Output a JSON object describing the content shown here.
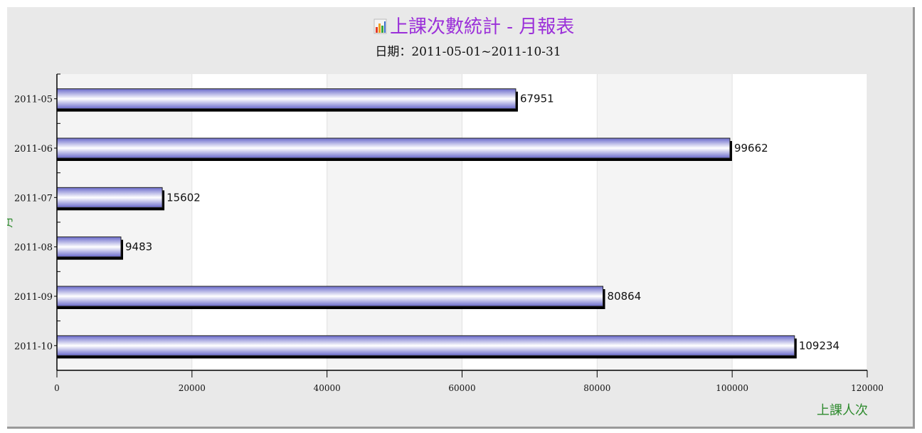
{
  "chart_data": {
    "type": "bar",
    "orientation": "horizontal",
    "title": "上課次數統計 - 月報表",
    "subtitle": "日期：2011-05-01~2011-10-31",
    "xlabel": "上課人次",
    "ylabel": "月",
    "categories": [
      "2011-05",
      "2011-06",
      "2011-07",
      "2011-08",
      "2011-09",
      "2011-10"
    ],
    "values": [
      67951,
      99662,
      15602,
      9483,
      80864,
      109234
    ],
    "value_labels": [
      "67951",
      "99662",
      "15602",
      "9483",
      "80864",
      "109234"
    ],
    "xlim": [
      0,
      120000
    ],
    "x_ticks": [
      0,
      20000,
      40000,
      60000,
      80000,
      100000,
      120000
    ],
    "x_tick_labels": [
      "0",
      "20000",
      "40000",
      "60000",
      "80000",
      "100000",
      "120000"
    ],
    "grid": true,
    "legend": "none",
    "colors": {
      "title": "#9b30d9",
      "axis_label": "#2e8b2e",
      "bar_center": "#ffffff",
      "bar_edge": "#6a6acb",
      "bar_shadow": "#000000"
    },
    "title_icon": "bar-chart-icon"
  }
}
